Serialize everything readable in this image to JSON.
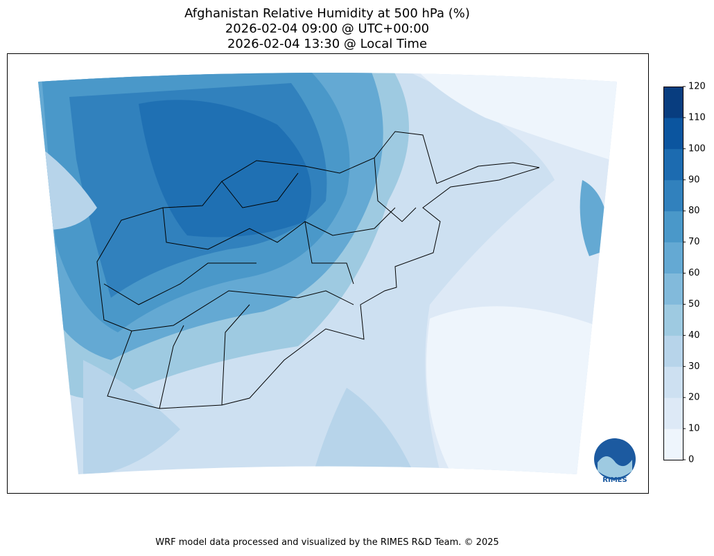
{
  "title": {
    "lines": [
      "Afghanistan Relative Humidity at 500 hPa (%)",
      "2026-02-04 09:00 @ UTC+00:00",
      "2026-02-04 13:30 @ Local Time"
    ]
  },
  "colorbar": {
    "ticks": [
      0,
      10,
      20,
      30,
      40,
      50,
      60,
      70,
      80,
      90,
      100,
      110,
      120
    ],
    "colors": [
      "#eef5fc",
      "#dde9f6",
      "#cde0f1",
      "#b7d4ea",
      "#9ecae1",
      "#82badb",
      "#64a9d3",
      "#4a98c9",
      "#3181bd",
      "#1c6bb0",
      "#0b559f",
      "#083d7f"
    ]
  },
  "logo": {
    "text": "RIMES"
  },
  "footer": "WRF model data processed and visualized by the RIMES R&D Team. © 2025"
}
